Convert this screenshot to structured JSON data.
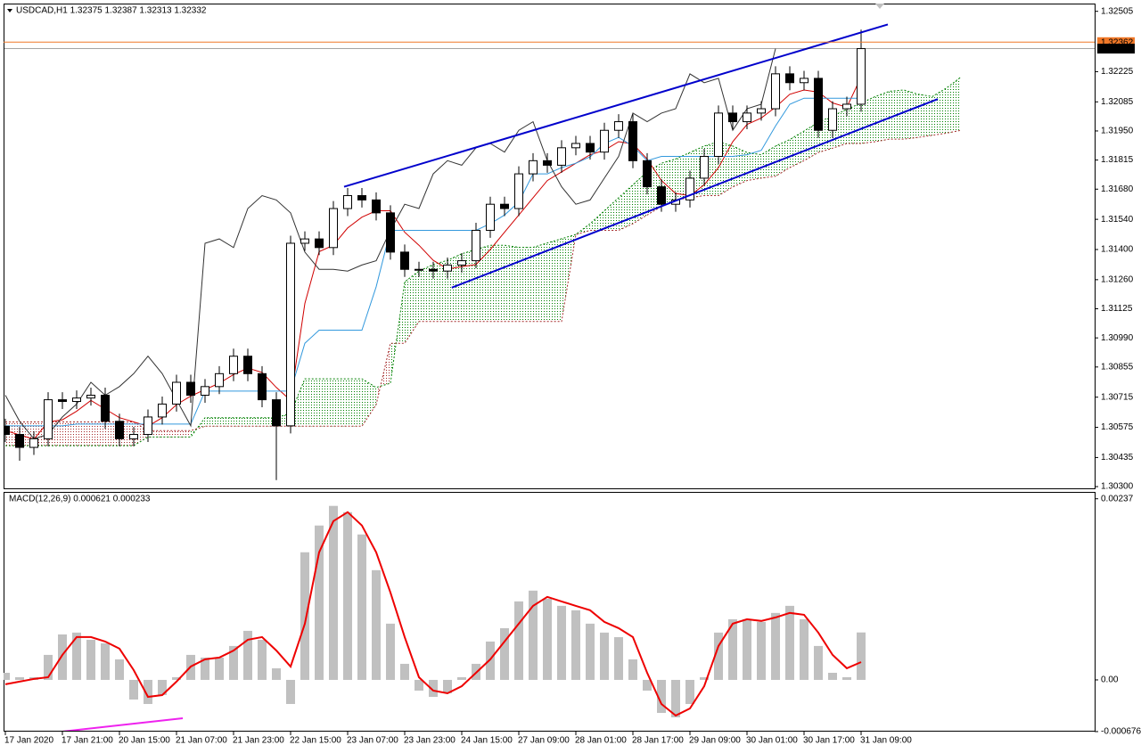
{
  "chart_data": [
    {
      "type": "candlestick",
      "title": "USDCAD,H1  1.32375 1.32387 1.32313 1.32332",
      "categories": [
        "17 Jan 2020",
        null,
        null,
        null,
        "17 Jan 21:00",
        null,
        null,
        null,
        "20 Jan 15:00",
        null,
        null,
        null,
        "21 Jan 07:00",
        null,
        null,
        null,
        "21 Jan 23:00",
        null,
        null,
        null,
        "22 Jan 15:00",
        null,
        null,
        null,
        "23 Jan 07:00",
        null,
        null,
        null,
        "23 Jan 23:00",
        null,
        null,
        null,
        "24 Jan 15:00",
        null,
        null,
        null,
        "27 Jan 09:00",
        null,
        null,
        null,
        "28 Jan 01:00",
        null,
        null,
        null,
        "28 Jan 17:00",
        null,
        null,
        null,
        "29 Jan 09:00",
        null,
        null,
        null,
        "30 Jan 01:00",
        null,
        null,
        null,
        "30 Jan 17:00",
        null,
        null,
        null,
        "31 Jan 09:00"
      ],
      "open": [
        1.3058,
        1.30542,
        1.30482,
        1.30522,
        1.30703,
        1.30695,
        1.30711,
        1.30724,
        1.30603,
        1.30522,
        1.30542,
        1.30623,
        1.30683,
        1.30784,
        1.30724,
        1.30764,
        1.30824,
        1.30905,
        1.30824,
        1.30703,
        1.30582,
        1.31429,
        1.31449,
        1.31409,
        1.3159,
        1.3165,
        1.3163,
        1.3157,
        1.31388,
        1.31308,
        1.31308,
        1.313,
        1.31328,
        1.31348,
        1.31489,
        1.3161,
        1.3159,
        1.31751,
        1.31812,
        1.31791,
        1.31872,
        1.31892,
        1.31852,
        1.31953,
        1.31993,
        1.31812,
        1.31691,
        1.3161,
        1.3163,
        1.31731,
        1.31832,
        1.32033,
        1.31993,
        1.32033,
        1.32053,
        1.32215,
        1.32174,
        1.32194,
        1.31953,
        1.32053,
        1.32074
      ],
      "high": [
        1.30615,
        1.30577,
        1.30557,
        1.30738,
        1.30738,
        1.30746,
        1.30759,
        1.30759,
        1.30638,
        1.30577,
        1.30658,
        1.30718,
        1.30819,
        1.30819,
        1.30799,
        1.30859,
        1.3094,
        1.3094,
        1.30859,
        1.30738,
        1.31464,
        1.31484,
        1.31484,
        1.31625,
        1.31685,
        1.31685,
        1.31665,
        1.31605,
        1.31423,
        1.31343,
        1.31343,
        1.31363,
        1.31383,
        1.31524,
        1.31645,
        1.31645,
        1.31786,
        1.31847,
        1.31847,
        1.31907,
        1.31927,
        1.31927,
        1.31988,
        1.32028,
        1.32028,
        1.31847,
        1.31726,
        1.31665,
        1.31766,
        1.31867,
        1.32068,
        1.32068,
        1.32068,
        1.32088,
        1.3225,
        1.3225,
        1.32229,
        1.32229,
        1.32088,
        1.32109,
        1.3242
      ],
      "low": [
        1.30507,
        1.3042,
        1.30447,
        1.30487,
        1.3066,
        1.3066,
        1.30676,
        1.30568,
        1.30487,
        1.30487,
        1.30507,
        1.30588,
        1.30648,
        1.30689,
        1.30689,
        1.30729,
        1.30789,
        1.30789,
        1.30668,
        1.3033,
        1.30547,
        1.31394,
        1.31374,
        1.31374,
        1.31555,
        1.31595,
        1.31535,
        1.31353,
        1.31273,
        1.31273,
        1.31265,
        1.31265,
        1.31293,
        1.31313,
        1.31454,
        1.31555,
        1.31555,
        1.31716,
        1.31756,
        1.31756,
        1.31837,
        1.31817,
        1.31817,
        1.31918,
        1.31777,
        1.31656,
        1.31575,
        1.31575,
        1.31595,
        1.31696,
        1.31797,
        1.31958,
        1.31958,
        1.31998,
        1.32018,
        1.32139,
        1.32139,
        1.31918,
        1.31918,
        1.32018,
        1.32039
      ],
      "close": [
        1.30542,
        1.30482,
        1.30522,
        1.30703,
        1.30695,
        1.30711,
        1.30724,
        1.30603,
        1.30522,
        1.30542,
        1.30623,
        1.30683,
        1.30784,
        1.30724,
        1.30764,
        1.30824,
        1.30905,
        1.30824,
        1.30703,
        1.30582,
        1.31429,
        1.31449,
        1.31409,
        1.3159,
        1.3165,
        1.3163,
        1.3157,
        1.31388,
        1.31308,
        1.31308,
        1.313,
        1.31328,
        1.31348,
        1.31489,
        1.3161,
        1.3159,
        1.31751,
        1.31812,
        1.31791,
        1.31872,
        1.31892,
        1.31852,
        1.31953,
        1.31993,
        1.31812,
        1.31691,
        1.3161,
        1.3163,
        1.31731,
        1.31832,
        1.32033,
        1.31993,
        1.32033,
        1.32053,
        1.32215,
        1.32174,
        1.32194,
        1.31953,
        1.32053,
        1.32074,
        1.32332
      ],
      "color": "#000000",
      "series": [
        {
          "color": "#d00000",
          "values": [
            1.3056,
            1.3054,
            1.3052,
            1.306,
            1.3061,
            1.3065,
            1.307,
            1.3066,
            1.3062,
            1.306,
            1.3058,
            1.3062,
            1.3068,
            1.3072,
            1.3075,
            1.3078,
            1.3082,
            1.3085,
            1.3083,
            1.3076,
            1.307,
            1.3115,
            1.3139,
            1.3142,
            1.315,
            1.3155,
            1.3158,
            1.3158,
            1.3148,
            1.3142,
            1.3135,
            1.3131,
            1.3132,
            1.3133,
            1.314,
            1.3148,
            1.3156,
            1.3164,
            1.3172,
            1.3176,
            1.318,
            1.3184,
            1.3186,
            1.319,
            1.3189,
            1.3182,
            1.3172,
            1.3166,
            1.3165,
            1.317,
            1.3178,
            1.319,
            1.3198,
            1.3201,
            1.3206,
            1.3212,
            1.3214,
            1.3213,
            1.3208,
            1.3206,
            1.322
          ]
        },
        {
          "color": "#3399dd",
          "values": [
            1.30582,
            1.30582,
            1.30582,
            1.30582,
            1.30582,
            1.3059,
            1.3059,
            1.3059,
            1.3059,
            1.3059,
            1.3059,
            1.3059,
            1.3059,
            1.3059,
            1.30743,
            1.30743,
            1.30743,
            1.30743,
            1.30743,
            1.30743,
            1.30743,
            1.30965,
            1.31026,
            1.31026,
            1.31026,
            1.31026,
            1.31227,
            1.31489,
            1.31489,
            1.31489,
            1.31489,
            1.31489,
            1.31489,
            1.31489,
            1.3152,
            1.3156,
            1.3162,
            1.31751,
            1.31751,
            1.3178,
            1.318,
            1.3183,
            1.31892,
            1.3192,
            1.3188,
            1.31812,
            1.31832,
            1.31832,
            1.31832,
            1.31832,
            1.31832,
            1.31832,
            1.3184,
            1.3186,
            1.31973,
            1.32074,
            1.32102,
            1.32102,
            1.32102,
            1.32102,
            1.32102
          ]
        },
        {
          "color": "#333333",
          "values": [
            1.30724,
            1.30603,
            1.30522,
            1.30542,
            1.30623,
            1.30683,
            1.30784,
            1.30724,
            1.30764,
            1.30824,
            1.30905,
            1.30824,
            1.30703,
            1.30582,
            1.31429,
            1.31449,
            1.31409,
            1.3159,
            1.3165,
            1.3163,
            1.3157,
            1.31388,
            1.31308,
            1.31308,
            1.313,
            1.31328,
            1.31348,
            1.31489,
            1.3161,
            1.3159,
            1.31751,
            1.31812,
            1.31791,
            1.31872,
            1.31892,
            1.31852,
            1.31953,
            1.31993,
            1.31812,
            1.31691,
            1.3161,
            1.3163,
            1.31731,
            1.31832,
            1.32033,
            1.31993,
            1.32033,
            1.32053,
            1.32215,
            1.32174,
            1.32194,
            1.31953,
            1.32053,
            1.32074,
            1.32332,
            null,
            null,
            null,
            null,
            null,
            null
          ]
        }
      ],
      "cloud": {
        "span_a": {
          "color": "#008000",
          "values": [
            1.3049,
            1.3049,
            1.3049,
            1.3049,
            1.3049,
            1.3049,
            1.3049,
            1.3049,
            1.3049,
            1.3049,
            1.3053,
            1.3053,
            1.3053,
            1.3053,
            1.3062,
            1.3062,
            1.3062,
            1.3062,
            1.3062,
            1.3062,
            1.3064,
            1.308,
            1.308,
            1.308,
            1.308,
            1.308,
            1.3076,
            1.3078,
            1.3125,
            1.313,
            1.3133,
            1.3135,
            1.3138,
            1.314,
            1.3142,
            1.3142,
            1.3141,
            1.3141,
            1.3143,
            1.3145,
            1.3147,
            1.3152,
            1.3158,
            1.3164,
            1.317,
            1.3176,
            1.318,
            1.3182,
            1.3185,
            1.3188,
            1.319,
            1.3188,
            1.3185,
            1.3184,
            1.3188,
            1.3191,
            1.3195,
            1.3199,
            1.3202,
            1.3205,
            1.3208,
            1.3211,
            1.32134,
            1.3214,
            1.3212,
            1.3211,
            1.3215,
            1.322
          ]
        },
        "span_b": {
          "color": "#a52a2a",
          "values": [
            1.306,
            1.306,
            1.306,
            1.306,
            1.306,
            1.306,
            1.306,
            1.306,
            1.306,
            1.306,
            1.3056,
            1.3056,
            1.3056,
            1.3056,
            1.3058,
            1.3058,
            1.3058,
            1.3058,
            1.3058,
            1.3058,
            1.3058,
            1.3058,
            1.3058,
            1.3058,
            1.3058,
            1.3058,
            1.3068,
            1.30965,
            1.30965,
            1.31066,
            1.31066,
            1.31066,
            1.31066,
            1.31066,
            1.31066,
            1.31066,
            1.31066,
            1.31066,
            1.31066,
            1.31066,
            1.31469,
            1.31489,
            1.31489,
            1.31489,
            1.3152,
            1.3156,
            1.316,
            1.3163,
            1.3164,
            1.3165,
            1.3165,
            1.3169,
            1.3172,
            1.31731,
            1.3174,
            1.3178,
            1.31812,
            1.3185,
            1.3187,
            1.31892,
            1.31892,
            1.319,
            1.31912,
            1.31912,
            1.3192,
            1.3193,
            1.3194,
            1.31953
          ]
        }
      },
      "trendlines": {
        "color": "#0000cc",
        "lines": [
          {
            "x": [
              23.75,
              61.875
            ],
            "y": [
              1.31691,
              1.32444
            ]
          },
          {
            "x": [
              31.3,
              65.375
            ],
            "y": [
              1.31223,
              1.32098
            ]
          }
        ]
      },
      "price_lines": [
        {
          "value": 1.32362,
          "color": "#f07828"
        },
        {
          "value": 1.32332,
          "color": "#000000"
        }
      ],
      "ylim": [
        1.30292,
        1.32541
      ],
      "yticks": [
        1.32505,
        1.32225,
        1.32085,
        {
          "value": 1.3195,
          "label": "1.31950"
        },
        1.31815,
        {
          "value": 1.3168,
          "label": "1.31680"
        },
        {
          "value": 1.3154,
          "label": "1.31540"
        },
        {
          "value": 1.314,
          "label": "1.31400"
        },
        {
          "value": 1.3126,
          "label": "1.31260"
        },
        1.31125,
        {
          "value": 1.3099,
          "label": "1.30990"
        },
        1.30855,
        1.30715,
        1.30575,
        1.30435,
        {
          "value": 1.303,
          "label": "1.30300"
        }
      ]
    },
    {
      "type": "bar",
      "title": "MACD(12,26,9) 0.000621 0.000233",
      "color": "#c0c0c0",
      "values": [
        9.3e-05,
        3.5e-05,
        3.5e-05,
        0.000327,
        0.000595,
        0.000619,
        0.000525,
        0.000479,
        0.000269,
        -0.000257,
        -0.000315,
        -0.000198,
        3.5e-05,
        0.000327,
        0.000292,
        0.000292,
        0.000444,
        0.000642,
        0.000525,
        0.000152,
        -0.000315,
        0.00167,
        0.00202,
        0.002277,
        0.002195,
        0.001903,
        0.001436,
        0.000736,
        0.00021,
        -0.00014,
        -0.000222,
        -0.000175,
        3.5e-05,
        0.00021,
        0.000502,
        0.000677,
        0.001027,
        0.001168,
        0.001062,
        0.000969,
        0.000911,
        0.000736,
        0.000619,
        0.00056,
        0.000269,
        -0.00014,
        -0.000432,
        -0.00049,
        -0.000315,
        3.5e-05,
        0.000619,
        0.000794,
        0.000794,
        0.000759,
        0.000876,
        0.000969,
        0.000794,
        0.000444,
        9.3e-05,
        3.5e-05,
        0.000621
      ],
      "signal": {
        "color": "#ee0000",
        "values": [
          -5.8e-05,
          -2.3e-05,
          1.2e-05,
          3.5e-05,
          0.000327,
          0.00056,
          0.00056,
          0.000502,
          0.000409,
          0.000128,
          -0.000222,
          -0.000198,
          -2.3e-05,
          0.000175,
          0.000269,
          0.000292,
          0.000385,
          0.000525,
          0.00056,
          0.000385,
          0.000175,
          0.000736,
          0.00167,
          0.002078,
          0.002195,
          0.00202,
          0.00167,
          0.001144,
          0.00056,
          3.5e-05,
          -0.00014,
          -0.000175,
          -8.2e-05,
          9.3e-05,
          0.000269,
          0.000502,
          0.000736,
          0.000969,
          0.001086,
          0.001027,
          0.000969,
          0.000911,
          0.000759,
          0.000677,
          0.00056,
          9.3e-05,
          -0.000315,
          -0.000467,
          -0.000374,
          -8.2e-05,
          0.000444,
          0.000736,
          0.000794,
          0.000771,
          0.000817,
          0.000876,
          0.000852,
          0.000619,
          0.000327,
          0.000152,
          0.000233
        ]
      },
      "trendline": {
        "color": "#ee22ee",
        "x": [
          3.375,
          12.44
        ],
        "y": [
          -0.000689,
          -0.000502
        ]
      },
      "ylim": [
        -0.000665,
        0.00246
      ],
      "yticks": [
        0.00237,
        {
          "value": 0,
          "label": "0.00"
        },
        -0.000676
      ]
    }
  ]
}
